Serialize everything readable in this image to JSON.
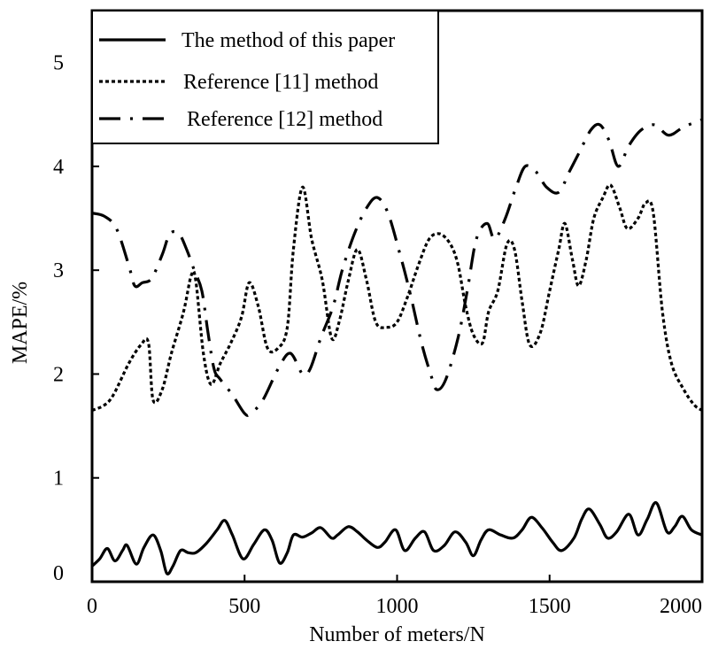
{
  "chart_data": {
    "type": "line",
    "xlabel": "Number of meters/N",
    "ylabel": "MAPE/%",
    "xlim": [
      0,
      2000
    ],
    "ylim": [
      0,
      5.5
    ],
    "x_ticks": [
      "0",
      "500",
      "1000",
      "1500",
      "2000"
    ],
    "y_ticks": [
      "0",
      "1",
      "2",
      "3",
      "4",
      "5"
    ],
    "grid": false,
    "legend_position": "top-left",
    "series": [
      {
        "name": "The method of this paper",
        "style": "solid",
        "points": [
          [
            0,
            0.15
          ],
          [
            25,
            0.22
          ],
          [
            50,
            0.32
          ],
          [
            75,
            0.2
          ],
          [
            100,
            0.3
          ],
          [
            115,
            0.35
          ],
          [
            145,
            0.17
          ],
          [
            170,
            0.33
          ],
          [
            200,
            0.45
          ],
          [
            225,
            0.3
          ],
          [
            245,
            0.08
          ],
          [
            265,
            0.15
          ],
          [
            290,
            0.3
          ],
          [
            315,
            0.28
          ],
          [
            340,
            0.28
          ],
          [
            375,
            0.37
          ],
          [
            410,
            0.5
          ],
          [
            435,
            0.59
          ],
          [
            460,
            0.45
          ],
          [
            495,
            0.22
          ],
          [
            530,
            0.36
          ],
          [
            565,
            0.5
          ],
          [
            590,
            0.4
          ],
          [
            615,
            0.18
          ],
          [
            640,
            0.28
          ],
          [
            660,
            0.45
          ],
          [
            690,
            0.43
          ],
          [
            720,
            0.47
          ],
          [
            750,
            0.52
          ],
          [
            785,
            0.42
          ],
          [
            805,
            0.45
          ],
          [
            840,
            0.53
          ],
          [
            870,
            0.48
          ],
          [
            900,
            0.4
          ],
          [
            935,
            0.33
          ],
          [
            960,
            0.38
          ],
          [
            995,
            0.5
          ],
          [
            1025,
            0.3
          ],
          [
            1060,
            0.42
          ],
          [
            1090,
            0.48
          ],
          [
            1120,
            0.3
          ],
          [
            1155,
            0.35
          ],
          [
            1190,
            0.48
          ],
          [
            1225,
            0.38
          ],
          [
            1250,
            0.25
          ],
          [
            1275,
            0.4
          ],
          [
            1300,
            0.5
          ],
          [
            1340,
            0.45
          ],
          [
            1380,
            0.42
          ],
          [
            1410,
            0.5
          ],
          [
            1440,
            0.62
          ],
          [
            1475,
            0.52
          ],
          [
            1510,
            0.38
          ],
          [
            1540,
            0.3
          ],
          [
            1580,
            0.42
          ],
          [
            1605,
            0.6
          ],
          [
            1630,
            0.7
          ],
          [
            1665,
            0.55
          ],
          [
            1690,
            0.42
          ],
          [
            1720,
            0.48
          ],
          [
            1760,
            0.65
          ],
          [
            1790,
            0.45
          ],
          [
            1820,
            0.6
          ],
          [
            1850,
            0.76
          ],
          [
            1885,
            0.48
          ],
          [
            1910,
            0.53
          ],
          [
            1935,
            0.63
          ],
          [
            1965,
            0.5
          ],
          [
            2000,
            0.45
          ]
        ]
      },
      {
        "name": "Reference [11] method",
        "style": "dotted",
        "points": [
          [
            0,
            1.65
          ],
          [
            40,
            1.7
          ],
          [
            70,
            1.8
          ],
          [
            120,
            2.1
          ],
          [
            160,
            2.28
          ],
          [
            185,
            2.3
          ],
          [
            200,
            1.75
          ],
          [
            230,
            1.85
          ],
          [
            260,
            2.2
          ],
          [
            300,
            2.6
          ],
          [
            325,
            2.95
          ],
          [
            340,
            2.9
          ],
          [
            365,
            2.2
          ],
          [
            390,
            1.9
          ],
          [
            420,
            2.1
          ],
          [
            455,
            2.3
          ],
          [
            490,
            2.55
          ],
          [
            515,
            2.88
          ],
          [
            545,
            2.65
          ],
          [
            575,
            2.25
          ],
          [
            610,
            2.25
          ],
          [
            640,
            2.45
          ],
          [
            660,
            3.2
          ],
          [
            690,
            3.8
          ],
          [
            720,
            3.3
          ],
          [
            755,
            2.9
          ],
          [
            785,
            2.35
          ],
          [
            810,
            2.5
          ],
          [
            840,
            2.9
          ],
          [
            870,
            3.2
          ],
          [
            900,
            2.9
          ],
          [
            930,
            2.5
          ],
          [
            965,
            2.45
          ],
          [
            1000,
            2.5
          ],
          [
            1035,
            2.75
          ],
          [
            1070,
            3.05
          ],
          [
            1105,
            3.3
          ],
          [
            1140,
            3.35
          ],
          [
            1175,
            3.25
          ],
          [
            1200,
            3.05
          ],
          [
            1225,
            2.65
          ],
          [
            1250,
            2.38
          ],
          [
            1280,
            2.3
          ],
          [
            1300,
            2.6
          ],
          [
            1330,
            2.8
          ],
          [
            1360,
            3.25
          ],
          [
            1385,
            3.2
          ],
          [
            1410,
            2.7
          ],
          [
            1435,
            2.28
          ],
          [
            1470,
            2.4
          ],
          [
            1500,
            2.8
          ],
          [
            1530,
            3.2
          ],
          [
            1550,
            3.45
          ],
          [
            1575,
            3.1
          ],
          [
            1595,
            2.85
          ],
          [
            1620,
            3.1
          ],
          [
            1645,
            3.5
          ],
          [
            1675,
            3.7
          ],
          [
            1700,
            3.82
          ],
          [
            1730,
            3.6
          ],
          [
            1755,
            3.4
          ],
          [
            1790,
            3.5
          ],
          [
            1815,
            3.65
          ],
          [
            1840,
            3.55
          ],
          [
            1870,
            2.6
          ],
          [
            1900,
            2.1
          ],
          [
            1940,
            1.85
          ],
          [
            1975,
            1.7
          ],
          [
            2000,
            1.65
          ]
        ]
      },
      {
        "name": "Reference [12] method",
        "style": "dashdot",
        "points": [
          [
            0,
            3.55
          ],
          [
            40,
            3.52
          ],
          [
            80,
            3.4
          ],
          [
            120,
            3.05
          ],
          [
            140,
            2.85
          ],
          [
            165,
            2.88
          ],
          [
            195,
            2.92
          ],
          [
            230,
            3.15
          ],
          [
            255,
            3.35
          ],
          [
            285,
            3.35
          ],
          [
            310,
            3.2
          ],
          [
            335,
            3.0
          ],
          [
            360,
            2.8
          ],
          [
            380,
            2.4
          ],
          [
            400,
            2.05
          ],
          [
            420,
            1.95
          ],
          [
            460,
            1.8
          ],
          [
            500,
            1.62
          ],
          [
            520,
            1.62
          ],
          [
            560,
            1.75
          ],
          [
            610,
            2.05
          ],
          [
            650,
            2.2
          ],
          [
            690,
            2.0
          ],
          [
            715,
            2.05
          ],
          [
            750,
            2.35
          ],
          [
            790,
            2.65
          ],
          [
            820,
            3.0
          ],
          [
            860,
            3.35
          ],
          [
            900,
            3.6
          ],
          [
            935,
            3.7
          ],
          [
            970,
            3.55
          ],
          [
            1010,
            3.15
          ],
          [
            1045,
            2.75
          ],
          [
            1080,
            2.3
          ],
          [
            1110,
            2.0
          ],
          [
            1130,
            1.85
          ],
          [
            1160,
            1.95
          ],
          [
            1200,
            2.35
          ],
          [
            1230,
            2.8
          ],
          [
            1260,
            3.3
          ],
          [
            1295,
            3.45
          ],
          [
            1320,
            3.3
          ],
          [
            1355,
            3.5
          ],
          [
            1390,
            3.8
          ],
          [
            1420,
            4.0
          ],
          [
            1455,
            3.95
          ],
          [
            1490,
            3.8
          ],
          [
            1530,
            3.75
          ],
          [
            1565,
            3.95
          ],
          [
            1600,
            4.15
          ],
          [
            1635,
            4.35
          ],
          [
            1665,
            4.4
          ],
          [
            1695,
            4.25
          ],
          [
            1725,
            4.0
          ],
          [
            1760,
            4.2
          ],
          [
            1800,
            4.35
          ],
          [
            1845,
            4.4
          ],
          [
            1890,
            4.3
          ],
          [
            1940,
            4.38
          ],
          [
            2000,
            4.45
          ]
        ]
      }
    ]
  }
}
